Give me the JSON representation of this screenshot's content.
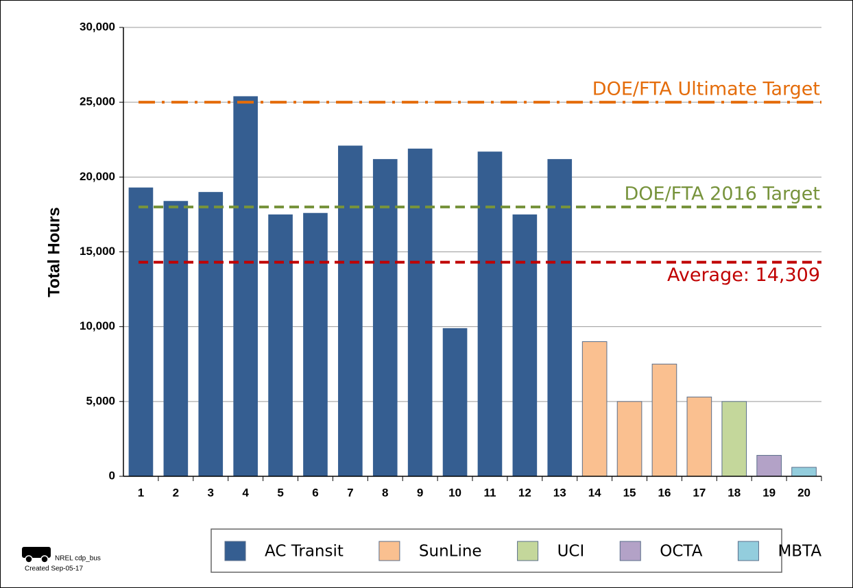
{
  "chart_data": {
    "type": "bar",
    "y_label": "Total Hours",
    "categories": [
      "1",
      "2",
      "3",
      "4",
      "5",
      "6",
      "7",
      "8",
      "9",
      "10",
      "11",
      "12",
      "13",
      "14",
      "15",
      "16",
      "17",
      "18",
      "19",
      "20"
    ],
    "series": [
      {
        "name": "AC Transit",
        "color": "#355e91",
        "values": [
          19300,
          18400,
          19000,
          25400,
          17500,
          17600,
          22100,
          21200,
          21900,
          9900,
          21700,
          17500,
          21200,
          null,
          null,
          null,
          null,
          null,
          null,
          null
        ]
      },
      {
        "name": "SunLine",
        "color": "#fac090",
        "values": [
          null,
          null,
          null,
          null,
          null,
          null,
          null,
          null,
          null,
          null,
          null,
          null,
          null,
          9000,
          5000,
          7500,
          5300,
          null,
          null,
          null
        ]
      },
      {
        "name": "UCI",
        "color": "#c4d79b",
        "values": [
          null,
          null,
          null,
          null,
          null,
          null,
          null,
          null,
          null,
          null,
          null,
          null,
          null,
          null,
          null,
          null,
          null,
          5000,
          null,
          null
        ]
      },
      {
        "name": "OCTA",
        "color": "#b3a2c7",
        "values": [
          null,
          null,
          null,
          null,
          null,
          null,
          null,
          null,
          null,
          null,
          null,
          null,
          null,
          null,
          null,
          null,
          null,
          null,
          1400,
          null
        ]
      },
      {
        "name": "MBTA",
        "color": "#93cddd",
        "values": [
          null,
          null,
          null,
          null,
          null,
          null,
          null,
          null,
          null,
          null,
          null,
          null,
          null,
          null,
          null,
          null,
          null,
          null,
          null,
          600
        ]
      }
    ],
    "reference_lines": [
      {
        "label": "DOE/FTA Ultimate Target",
        "value": 25000,
        "color": "#e46c0a",
        "style": "dashdot"
      },
      {
        "label": "DOE/FTA 2016 Target",
        "value": 18000,
        "color": "#77933c",
        "style": "dash"
      },
      {
        "label": "Average: 14,309",
        "value": 14309,
        "color": "#c00000",
        "style": "dash"
      }
    ],
    "ylim": [
      0,
      30000
    ],
    "yticks": [
      0,
      {
        "value": 5000,
        "label": "5,000"
      },
      {
        "value": 10000,
        "label": "10,000"
      },
      {
        "value": 15000,
        "label": "15,000"
      },
      {
        "value": 20000,
        "label": "20,000"
      },
      {
        "value": 25000,
        "label": "25,000"
      },
      {
        "value": 30000,
        "label": "30,000"
      }
    ],
    "grid": true,
    "legend": "bottom",
    "footnote": [
      "NREL cdp_bus",
      "Created Sep-05-17"
    ]
  }
}
